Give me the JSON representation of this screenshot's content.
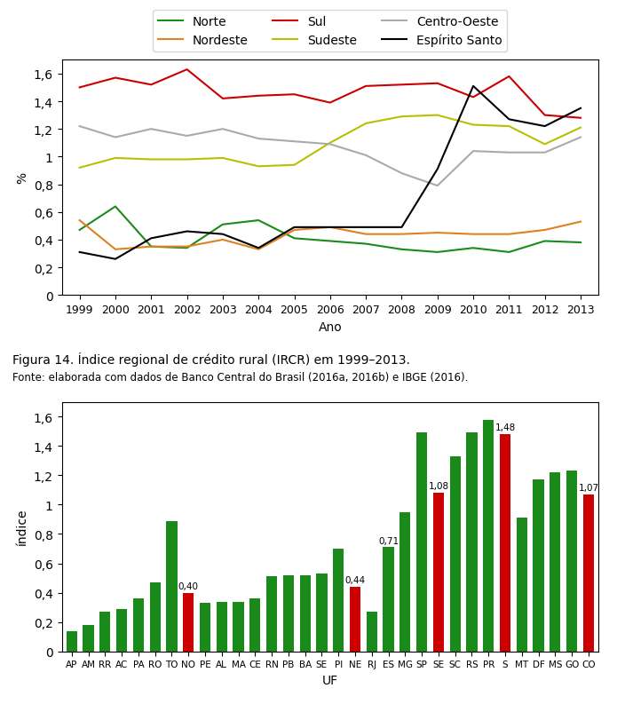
{
  "chart_data": [
    {
      "type": "line",
      "title": "Figura 14. Índice regional de crédito rural (IRCR) em 1999–2013.",
      "subtitle": "Fonte: elaborada com dados de Banco Central do Brasil (2016a, 2016b) e IBGE (2016).",
      "x_label": "Ano",
      "y_label": "%",
      "x": [
        1999,
        2000,
        2001,
        2002,
        2003,
        2004,
        2005,
        2006,
        2007,
        2008,
        2009,
        2010,
        2011,
        2012,
        2013
      ],
      "series": [
        {
          "name": "Norte",
          "color": "#1a8a1a",
          "values": [
            0.47,
            0.64,
            0.35,
            0.34,
            0.51,
            0.54,
            0.41,
            0.39,
            0.37,
            0.33,
            0.31,
            0.34,
            0.31,
            0.39,
            0.38
          ]
        },
        {
          "name": "Nordeste",
          "color": "#e08020",
          "values": [
            0.54,
            0.33,
            0.35,
            0.35,
            0.4,
            0.33,
            0.47,
            0.49,
            0.44,
            0.44,
            0.45,
            0.44,
            0.44,
            0.47,
            0.53
          ]
        },
        {
          "name": "Sul",
          "color": "#cc0000",
          "values": [
            1.5,
            1.57,
            1.52,
            1.63,
            1.42,
            1.44,
            1.45,
            1.39,
            1.51,
            1.52,
            1.53,
            1.43,
            1.58,
            1.3,
            1.28
          ]
        },
        {
          "name": "Sudeste",
          "color": "#b8c000",
          "values": [
            0.92,
            0.99,
            0.98,
            0.98,
            0.99,
            0.93,
            0.94,
            1.1,
            1.24,
            1.29,
            1.3,
            1.23,
            1.22,
            1.09,
            1.21
          ]
        },
        {
          "name": "Centro-Oeste",
          "color": "#aaaaaa",
          "values": [
            1.22,
            1.14,
            1.2,
            1.15,
            1.2,
            1.13,
            1.11,
            1.09,
            1.01,
            0.88,
            0.79,
            1.04,
            1.03,
            1.03,
            1.14
          ]
        },
        {
          "name": "Espírito Santo",
          "color": "#000000",
          "values": [
            0.31,
            0.26,
            0.41,
            0.46,
            0.44,
            0.34,
            0.49,
            0.49,
            0.49,
            0.49,
            0.91,
            1.51,
            1.27,
            1.22,
            1.35
          ]
        }
      ],
      "xlim": [
        1998.5,
        2013.5
      ],
      "xticks": [
        1999,
        2000,
        2001,
        2002,
        2003,
        2004,
        2005,
        2006,
        2007,
        2008,
        2009,
        2010,
        2011,
        2012,
        2013
      ],
      "ylim": [
        0,
        1.7
      ],
      "yticks": [
        0,
        {
          "value": 0.2,
          "label": "0,2"
        },
        {
          "value": 0.4,
          "label": "0,4"
        },
        {
          "value": 0.6,
          "label": "0,6"
        },
        {
          "value": 0.8,
          "label": "0,8"
        },
        1,
        {
          "value": 1.2,
          "label": "1,2"
        },
        {
          "value": 1.4,
          "label": "1,4"
        },
        {
          "value": 1.6,
          "label": "1,6"
        }
      ],
      "legend": "upper center"
    },
    {
      "type": "bar",
      "x_label": "UF",
      "y_label": "índice",
      "categories": [
        "AP",
        "AM",
        "RR",
        "AC",
        "PA",
        "RO",
        "TO",
        "NO",
        "PE",
        "AL",
        "MA",
        "CE",
        "RN",
        "PB",
        "BA",
        "SE",
        "PI",
        "NE",
        "RJ",
        "ES",
        "MG",
        "SP",
        "SE",
        "SC",
        "RS",
        "PR",
        "S",
        "MT",
        "DF",
        "MS",
        "GO",
        "CO"
      ],
      "values": [
        0.14,
        0.18,
        0.27,
        0.29,
        0.36,
        0.47,
        0.89,
        0.4,
        0.33,
        0.34,
        0.34,
        0.36,
        0.51,
        0.52,
        0.52,
        0.53,
        0.7,
        0.44,
        0.27,
        0.71,
        0.95,
        1.49,
        1.08,
        1.33,
        1.49,
        1.58,
        1.48,
        0.91,
        1.17,
        1.22,
        1.23,
        1.07
      ],
      "colors": [
        "#1a8a1a",
        "#1a8a1a",
        "#1a8a1a",
        "#1a8a1a",
        "#1a8a1a",
        "#1a8a1a",
        "#1a8a1a",
        "#cc0000",
        "#1a8a1a",
        "#1a8a1a",
        "#1a8a1a",
        "#1a8a1a",
        "#1a8a1a",
        "#1a8a1a",
        "#1a8a1a",
        "#1a8a1a",
        "#1a8a1a",
        "#cc0000",
        "#1a8a1a",
        "#1a8a1a",
        "#1a8a1a",
        "#1a8a1a",
        "#cc0000",
        "#1a8a1a",
        "#1a8a1a",
        "#1a8a1a",
        "#cc0000",
        "#1a8a1a",
        "#1a8a1a",
        "#1a8a1a",
        "#1a8a1a",
        "#cc0000"
      ],
      "data_labels": true,
      "value_labels": [
        null,
        null,
        null,
        null,
        null,
        null,
        null,
        "0,40",
        null,
        null,
        null,
        null,
        null,
        null,
        null,
        null,
        null,
        "0,44",
        null,
        "0,71",
        null,
        null,
        "1,08",
        null,
        null,
        null,
        "1,48",
        null,
        null,
        null,
        null,
        "1,07"
      ],
      "ylim": [
        0,
        1.7
      ],
      "yticks": [
        0,
        {
          "value": 0.2,
          "label": "0,2"
        },
        {
          "value": 0.4,
          "label": "0,4"
        },
        {
          "value": 0.6,
          "label": "0,6"
        },
        {
          "value": 0.8,
          "label": "0,8"
        },
        1,
        {
          "value": 1.2,
          "label": "1,2"
        },
        {
          "value": 1.4,
          "label": "1,4"
        },
        {
          "value": 1.6,
          "label": "1,6"
        }
      ]
    }
  ]
}
